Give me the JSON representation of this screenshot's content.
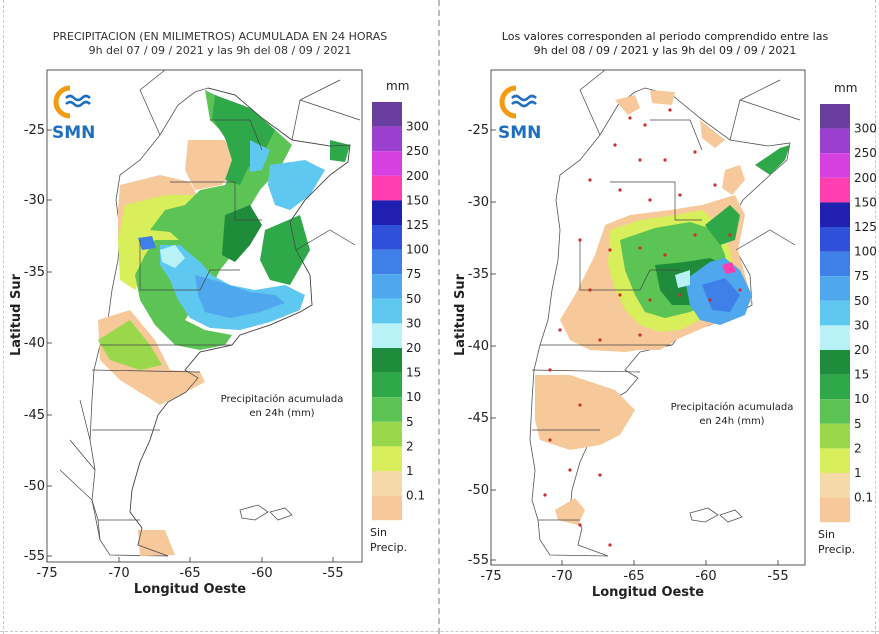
{
  "left_map": {
    "title_line1": "PRECIPITACION (EN MILIMETROS) ACUMULADA EN 24 HORAS",
    "title_line2": "9h del 07 / 09 / 2021  y las 9h del 08 / 09 / 2021",
    "annotation_line1": "Precipitación acumulada",
    "annotation_line2": "en 24h (mm)"
  },
  "right_map": {
    "title_line1": "Los valores corresponden al periodo comprendido entre las",
    "title_line2": "9h del 08 / 09 / 2021  y las 9h del 09 / 09 / 2021",
    "annotation_line1": "Precipitación acumulada",
    "annotation_line2": "en 24h (mm)"
  },
  "axes": {
    "y_label": "Latitud Sur",
    "x_label": "Longitud Oeste",
    "y_ticks": [
      "-25",
      "-30",
      "-35",
      "-40",
      "-45",
      "-50",
      "-55"
    ],
    "x_ticks": [
      "-75",
      "-70",
      "-65",
      "-60",
      "-55"
    ]
  },
  "logo": {
    "text": "SMN"
  },
  "legend": {
    "unit": "mm",
    "no_precip_line1": "Sin",
    "no_precip_line2": "Precip.",
    "levels": [
      {
        "label": "300",
        "color": "#6a3ea1"
      },
      {
        "label": "250",
        "color": "#9b3fd0"
      },
      {
        "label": "200",
        "color": "#d63fe0"
      },
      {
        "label": "150",
        "color": "#ff3fb0"
      },
      {
        "label": "125",
        "color": "#2020b0"
      },
      {
        "label": "100",
        "color": "#2f50d8"
      },
      {
        "label": "75",
        "color": "#3f7fe8"
      },
      {
        "label": "50",
        "color": "#4fa8ee"
      },
      {
        "label": "30",
        "color": "#5ec8f0"
      },
      {
        "label": "20",
        "color": "#b8f2f6"
      },
      {
        "label": "15",
        "color": "#1e8c3a"
      },
      {
        "label": "10",
        "color": "#2fa84a"
      },
      {
        "label": "5",
        "color": "#5cc455"
      },
      {
        "label": "2",
        "color": "#98d84a"
      },
      {
        "label": "1",
        "color": "#d8ee5a"
      },
      {
        "label": "0.1",
        "color": "#f6d9a8"
      }
    ],
    "no_precip_color": "#f6c89a"
  }
}
